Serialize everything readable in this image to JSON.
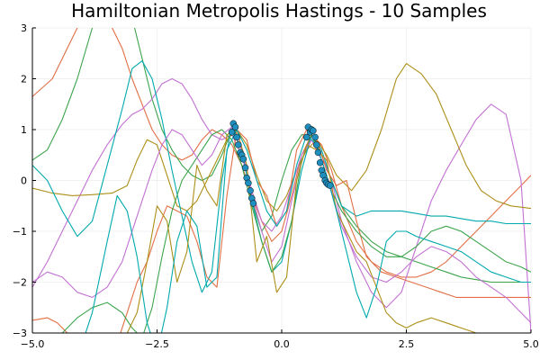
{
  "chart_data": {
    "type": "line",
    "title": "Hamiltonian Metropolis Hastings - 10 Samples",
    "xlabel": "",
    "ylabel": "",
    "xlim": [
      -5,
      5
    ],
    "ylim": [
      -3,
      3
    ],
    "xticks": [
      -5,
      -2.5,
      0,
      2.5,
      5
    ],
    "xtick_labels": [
      "−5.0",
      "−2.5",
      "0.0",
      "2.5",
      "5.0"
    ],
    "yticks": [
      -3,
      -2,
      -1,
      0,
      1,
      2,
      3
    ],
    "ytick_labels": [
      "−3",
      "−2",
      "−1",
      "0",
      "1",
      "2",
      "3"
    ],
    "grid": true,
    "legend": "none",
    "observations": {
      "color": "#1f8fc0",
      "x": [
        -1.0,
        -0.97,
        -0.93,
        -0.9,
        -0.87,
        -0.83,
        -0.8,
        -0.77,
        -0.73,
        -0.7,
        -0.67,
        -0.63,
        -0.6,
        -0.57,
        0.5,
        0.53,
        0.57,
        0.6,
        0.63,
        0.67,
        0.7,
        0.73,
        0.77,
        0.8,
        0.83,
        0.87,
        0.9,
        0.93,
        0.97
      ],
      "y": [
        0.95,
        1.12,
        1.05,
        0.85,
        0.7,
        0.55,
        0.5,
        0.42,
        0.25,
        0.05,
        -0.05,
        -0.2,
        -0.35,
        -0.45,
        0.85,
        1.05,
        0.95,
        1.0,
        0.98,
        0.85,
        0.7,
        0.55,
        0.35,
        0.2,
        0.1,
        0.0,
        -0.05,
        -0.08,
        -0.1
      ]
    },
    "series": [
      {
        "color": "#e26f46",
        "x": [
          -5,
          -4.6,
          -4.3,
          -4.0,
          -3.8,
          -3.5,
          -3.2,
          -3.0,
          -2.8,
          -2.6,
          -2.4,
          -2.2,
          -2.0,
          -1.8,
          -1.6,
          -1.4,
          -1.2,
          -1.0,
          -0.8,
          -0.6,
          -0.4,
          -0.2,
          0.0,
          0.2,
          0.4,
          0.6,
          0.8,
          1.0,
          1.2,
          1.5,
          1.8,
          2.1,
          2.4,
          2.7,
          3.0,
          3.3,
          3.6,
          3.9,
          4.2,
          4.5,
          4.8,
          5.0
        ],
        "y": [
          1.65,
          2.0,
          2.6,
          3.2,
          3.5,
          3.2,
          2.6,
          2.0,
          1.5,
          1.0,
          0.7,
          0.5,
          0.4,
          0.5,
          0.8,
          1.0,
          0.9,
          0.7,
          0.3,
          -0.3,
          -0.8,
          -1.2,
          -1.0,
          -0.3,
          0.5,
          0.9,
          0.7,
          0.2,
          -0.5,
          -1.2,
          -1.6,
          -1.8,
          -1.9,
          -1.9,
          -1.8,
          -1.6,
          -1.3,
          -1.0,
          -0.7,
          -0.4,
          -0.1,
          0.1
        ]
      },
      {
        "color": "#3da44d",
        "x": [
          -5,
          -4.7,
          -4.4,
          -4.1,
          -3.8,
          -3.5,
          -3.2,
          -3.0,
          -2.8,
          -2.6,
          -2.4,
          -2.2,
          -2.0,
          -1.8,
          -1.6,
          -1.4,
          -1.2,
          -1.0,
          -0.8,
          -0.6,
          -0.4,
          -0.2,
          0.0,
          0.2,
          0.4,
          0.6,
          0.8,
          1.0,
          1.2,
          1.5,
          1.8,
          2.1,
          2.4,
          2.7,
          3.0,
          3.3,
          3.6,
          3.9,
          4.2,
          4.5,
          4.8,
          5.0
        ],
        "y": [
          0.4,
          0.6,
          1.2,
          2.0,
          3.0,
          3.4,
          3.6,
          3.2,
          2.4,
          1.6,
          1.0,
          0.6,
          0.3,
          0.1,
          0.0,
          0.1,
          0.5,
          1.0,
          0.6,
          -0.4,
          -1.0,
          -0.7,
          0.0,
          0.6,
          0.9,
          0.9,
          0.5,
          0.0,
          -0.5,
          -0.9,
          -1.2,
          -1.4,
          -1.5,
          -1.6,
          -1.7,
          -1.8,
          -1.9,
          -1.95,
          -2.0,
          -2.0,
          -2.0,
          -2.0
        ]
      },
      {
        "color": "#c271d2",
        "x": [
          -5,
          -4.7,
          -4.4,
          -4.1,
          -3.8,
          -3.5,
          -3.2,
          -3.0,
          -2.8,
          -2.6,
          -2.4,
          -2.2,
          -2.0,
          -1.8,
          -1.6,
          -1.4,
          -1.2,
          -1.0,
          -0.8,
          -0.6,
          -0.4,
          -0.2,
          0.0,
          0.2,
          0.4,
          0.6,
          0.8,
          1.0,
          1.2,
          1.5,
          1.8,
          2.1,
          2.4,
          2.7,
          3.0,
          3.3,
          3.6,
          3.9,
          4.2,
          4.5,
          4.8,
          5.0
        ],
        "y": [
          -2.1,
          -1.6,
          -1.0,
          -0.4,
          0.2,
          0.7,
          1.1,
          1.3,
          1.4,
          1.6,
          1.9,
          2.0,
          1.9,
          1.6,
          1.2,
          0.9,
          0.8,
          0.9,
          0.5,
          -0.3,
          -1.0,
          -1.6,
          -1.3,
          -0.4,
          0.4,
          0.8,
          0.5,
          0.0,
          -0.8,
          -1.6,
          -2.2,
          -2.5,
          -2.2,
          -1.3,
          -0.4,
          0.2,
          0.7,
          1.2,
          1.5,
          1.3,
          0.0,
          -3.0
        ]
      },
      {
        "color": "#ad8f18",
        "x": [
          -5,
          -4.6,
          -4.2,
          -3.8,
          -3.4,
          -3.1,
          -2.9,
          -2.7,
          -2.5,
          -2.3,
          -2.1,
          -1.9,
          -1.7,
          -1.5,
          -1.3,
          -1.1,
          -0.9,
          -0.7,
          -0.5,
          -0.3,
          -0.1,
          0.1,
          0.3,
          0.5,
          0.7,
          0.9,
          1.1,
          1.4,
          1.7,
          2.0,
          2.3,
          2.5,
          2.8,
          3.1,
          3.4,
          3.7,
          4.0,
          4.3,
          4.6,
          5.0
        ],
        "y": [
          -0.15,
          -0.25,
          -0.3,
          -0.28,
          -0.25,
          -0.1,
          0.4,
          0.8,
          0.7,
          0.1,
          -0.5,
          -0.6,
          -0.4,
          0.0,
          0.4,
          0.8,
          1.0,
          0.7,
          0.1,
          -0.4,
          -0.6,
          -0.3,
          0.2,
          0.6,
          0.8,
          0.5,
          0.1,
          -0.2,
          0.2,
          1.0,
          2.0,
          2.3,
          2.1,
          1.7,
          1.0,
          0.3,
          -0.2,
          -0.4,
          -0.5,
          -0.55
        ]
      },
      {
        "color": "#00a9ad",
        "x": [
          -5,
          -4.7,
          -4.4,
          -4.1,
          -3.8,
          -3.5,
          -3.2,
          -3.0,
          -2.8,
          -2.6,
          -2.4,
          -2.2,
          -2.0,
          -1.8,
          -1.6,
          -1.4,
          -1.2,
          -1.0,
          -0.8,
          -0.6,
          -0.4,
          -0.2,
          0.0,
          0.2,
          0.4,
          0.6,
          0.8,
          1.0,
          1.2,
          1.5,
          1.8,
          2.1,
          2.4,
          2.7,
          3.0,
          3.3,
          3.6,
          3.9,
          4.2,
          4.5,
          4.8,
          5.0
        ],
        "y": [
          0.3,
          0.0,
          -0.6,
          -1.1,
          -0.8,
          0.3,
          1.4,
          2.2,
          2.35,
          2.0,
          1.2,
          0.2,
          -0.7,
          -1.6,
          -2.2,
          -1.8,
          0.0,
          1.1,
          0.6,
          -0.4,
          -1.2,
          -1.8,
          -1.6,
          -0.8,
          0.2,
          0.9,
          0.6,
          0.0,
          -0.5,
          -0.7,
          -0.6,
          -0.6,
          -0.6,
          -0.65,
          -0.7,
          -0.7,
          -0.75,
          -0.8,
          -0.8,
          -0.85,
          -0.85,
          -0.85
        ]
      },
      {
        "color": "#e26f46",
        "x": [
          -5,
          -4.7,
          -4.5,
          -4.3,
          -4.1,
          -3.9,
          -3.7,
          -3.5,
          -3.3,
          -3.1,
          -2.9,
          -2.7,
          -2.5,
          -2.3,
          -2.1,
          -1.9,
          -1.7,
          -1.5,
          -1.3,
          -1.1,
          -0.9,
          -0.7,
          -0.5,
          -0.3,
          -0.1,
          0.1,
          0.3,
          0.5,
          0.7,
          0.9,
          1.1,
          1.3,
          1.5,
          1.7,
          2.0,
          2.3,
          2.6,
          2.9,
          3.2,
          3.5,
          3.8,
          4.1,
          4.4,
          4.7,
          5.0
        ],
        "y": [
          -2.75,
          -2.7,
          -2.8,
          -3.0,
          -3.2,
          -3.5,
          -3.6,
          -3.5,
          -3.2,
          -2.6,
          -2.0,
          -1.6,
          -1.0,
          -0.5,
          -0.6,
          -0.7,
          -1.2,
          -1.9,
          -2.1,
          -0.3,
          1.0,
          0.8,
          0.0,
          -0.3,
          -0.9,
          -0.6,
          0.6,
          1.0,
          0.8,
          0.2,
          -0.1,
          0.0,
          -0.8,
          -1.5,
          -1.8,
          -1.9,
          -2.0,
          -2.1,
          -2.2,
          -2.3,
          -2.3,
          -2.3,
          -2.3,
          -2.3,
          -2.3
        ]
      },
      {
        "color": "#3da44d",
        "x": [
          -5,
          -4.7,
          -4.4,
          -4.1,
          -3.8,
          -3.5,
          -3.2,
          -3.0,
          -2.8,
          -2.6,
          -2.4,
          -2.2,
          -2.0,
          -1.8,
          -1.6,
          -1.4,
          -1.2,
          -1.0,
          -0.8,
          -0.6,
          -0.4,
          -0.2,
          0.0,
          0.2,
          0.4,
          0.6,
          0.8,
          1.0,
          1.2,
          1.5,
          1.8,
          2.1,
          2.4,
          2.7,
          3.0,
          3.3,
          3.6,
          3.9,
          4.2,
          4.5,
          4.8,
          5.0
        ],
        "y": [
          -3.2,
          -3.3,
          -3.0,
          -2.7,
          -2.5,
          -2.4,
          -2.6,
          -2.9,
          -3.1,
          -2.5,
          -1.5,
          -0.6,
          0.0,
          0.3,
          0.6,
          0.9,
          1.0,
          0.8,
          0.3,
          -0.5,
          -1.2,
          -1.8,
          -1.5,
          -0.8,
          0.4,
          0.9,
          0.4,
          -0.2,
          -0.6,
          -1.0,
          -1.3,
          -1.5,
          -1.5,
          -1.3,
          -1.0,
          -0.9,
          -1.0,
          -1.2,
          -1.4,
          -1.6,
          -1.7,
          -1.8
        ]
      },
      {
        "color": "#c271d2",
        "x": [
          -5,
          -4.7,
          -4.4,
          -4.1,
          -3.8,
          -3.5,
          -3.2,
          -3.0,
          -2.8,
          -2.6,
          -2.4,
          -2.2,
          -2.0,
          -1.8,
          -1.6,
          -1.4,
          -1.2,
          -1.0,
          -0.8,
          -0.6,
          -0.4,
          -0.2,
          0.0,
          0.2,
          0.4,
          0.6,
          0.8,
          1.0,
          1.2,
          1.5,
          1.8,
          2.1,
          2.4,
          2.7,
          3.0,
          3.3,
          3.6,
          3.9,
          4.2,
          4.5,
          4.8,
          5.0
        ],
        "y": [
          -2.0,
          -1.8,
          -1.9,
          -2.2,
          -2.3,
          -2.1,
          -1.6,
          -1.0,
          -0.4,
          0.2,
          0.7,
          1.0,
          0.9,
          0.6,
          0.3,
          0.5,
          0.9,
          1.05,
          0.6,
          -0.2,
          -0.8,
          -1.0,
          -0.7,
          -0.1,
          0.5,
          0.8,
          0.4,
          -0.2,
          -0.9,
          -1.5,
          -1.9,
          -2.0,
          -1.8,
          -1.5,
          -1.3,
          -1.4,
          -1.6,
          -1.9,
          -2.1,
          -2.3,
          -2.6,
          -2.8
        ]
      },
      {
        "color": "#ad8f18",
        "x": [
          -5,
          -4.7,
          -4.4,
          -4.1,
          -3.8,
          -3.5,
          -3.3,
          -3.1,
          -2.9,
          -2.7,
          -2.5,
          -2.3,
          -2.1,
          -1.9,
          -1.7,
          -1.5,
          -1.3,
          -1.1,
          -0.9,
          -0.7,
          -0.5,
          -0.3,
          -0.1,
          0.1,
          0.3,
          0.5,
          0.7,
          0.9,
          1.1,
          1.3,
          1.5,
          1.7,
          1.9,
          2.1,
          2.3,
          2.5,
          2.7,
          3.0,
          3.3,
          3.6,
          3.9,
          4.2,
          4.5,
          4.8,
          5.0
        ],
        "y": [
          -3.4,
          -3.6,
          -3.5,
          -3.2,
          -3.0,
          -3.1,
          -3.3,
          -3.0,
          -2.6,
          -1.6,
          -0.5,
          -0.8,
          -2.0,
          -1.4,
          0.3,
          -0.2,
          -0.5,
          0.9,
          1.0,
          0.3,
          -1.6,
          -1.1,
          -2.2,
          -1.9,
          0.0,
          0.7,
          0.6,
          0.4,
          -0.6,
          -1.0,
          -1.4,
          -1.6,
          -2.1,
          -2.6,
          -2.8,
          -2.9,
          -2.8,
          -2.7,
          -2.8,
          -2.9,
          -3.0,
          -3.0,
          -3.0,
          -3.0,
          -3.0
        ]
      },
      {
        "color": "#00a9ad",
        "x": [
          -5,
          -4.7,
          -4.4,
          -4.1,
          -3.8,
          -3.5,
          -3.3,
          -3.1,
          -2.9,
          -2.7,
          -2.5,
          -2.3,
          -2.1,
          -1.9,
          -1.7,
          -1.5,
          -1.3,
          -1.1,
          -0.9,
          -0.7,
          -0.5,
          -0.3,
          -0.1,
          0.1,
          0.3,
          0.5,
          0.7,
          0.9,
          1.1,
          1.3,
          1.5,
          1.7,
          1.9,
          2.1,
          2.3,
          2.5,
          2.7,
          3.0,
          3.3,
          3.6,
          3.9,
          4.2,
          4.5,
          4.8,
          5.0
        ],
        "y": [
          -3.3,
          -3.6,
          -3.8,
          -3.5,
          -2.6,
          -1.2,
          -0.3,
          -0.6,
          -1.5,
          -2.8,
          -3.4,
          -2.5,
          -1.2,
          -0.6,
          -0.9,
          -2.1,
          -1.9,
          0.6,
          1.0,
          0.6,
          0.0,
          -0.6,
          -0.9,
          -0.6,
          0.3,
          0.9,
          0.7,
          0.1,
          -0.6,
          -1.4,
          -2.2,
          -2.7,
          -2.1,
          -1.2,
          -1.0,
          -1.0,
          -1.1,
          -1.2,
          -1.3,
          -1.4,
          -1.6,
          -1.8,
          -1.9,
          -2.0,
          -2.0
        ]
      }
    ]
  }
}
